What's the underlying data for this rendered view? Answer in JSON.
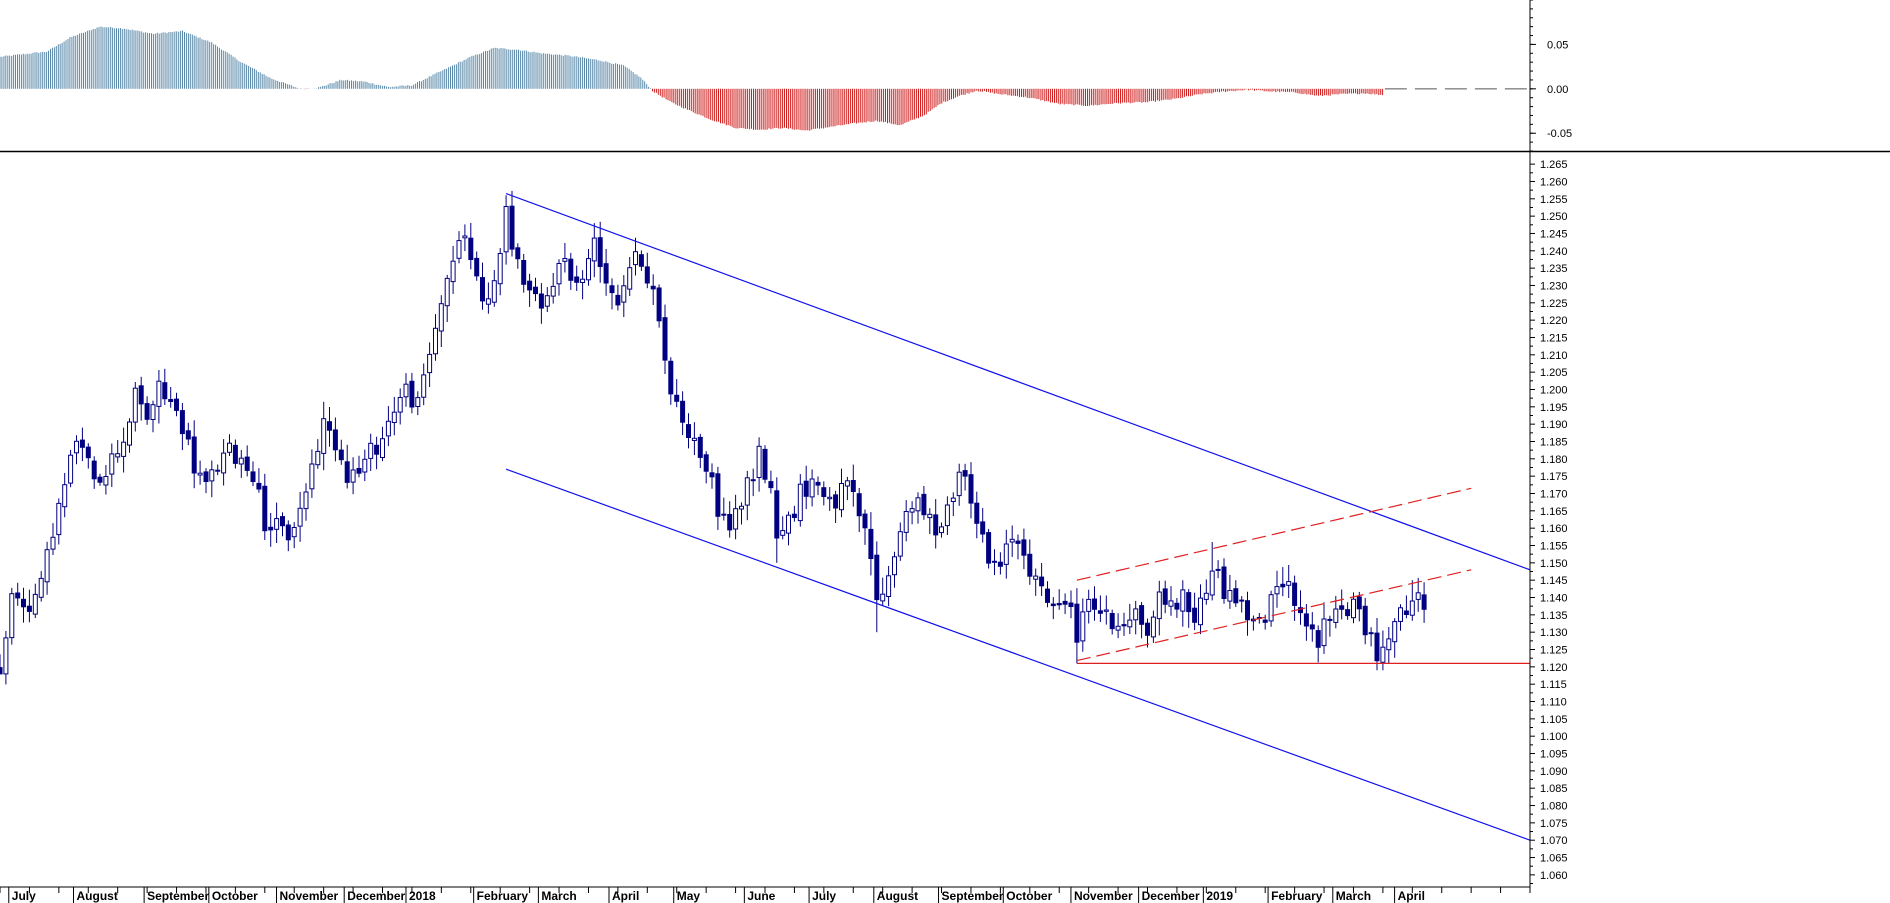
{
  "colors": {
    "background": "#ffffff",
    "price_bars": "#000080",
    "channel_lines": "#1010ee",
    "wedge_lines": "#e02020",
    "support_line": "#e02020",
    "osc_positive": "#5a88a8",
    "osc_negative": "#d02020",
    "axis": "#000000"
  },
  "chart_data": [
    {
      "type": "bar",
      "panel": "oscillator",
      "x_range": [
        0,
        260
      ],
      "ylim": [
        -0.07,
        0.1
      ],
      "y_ticks": [
        "0.05",
        "0.00",
        "-0.05"
      ],
      "y_tick_values": [
        0.05,
        0.0,
        -0.05
      ],
      "zero_line": "dashed",
      "anchors": [
        [
          0,
          0.036
        ],
        [
          8,
          0.042
        ],
        [
          12,
          0.058
        ],
        [
          17,
          0.07
        ],
        [
          21,
          0.068
        ],
        [
          26,
          0.062
        ],
        [
          31,
          0.065
        ],
        [
          36,
          0.052
        ],
        [
          41,
          0.03
        ],
        [
          46,
          0.012
        ],
        [
          51,
          0.0
        ],
        [
          54,
          0.001
        ],
        [
          58,
          0.01
        ],
        [
          62,
          0.008
        ],
        [
          66,
          0.002
        ],
        [
          70,
          0.004
        ],
        [
          75,
          0.02
        ],
        [
          80,
          0.036
        ],
        [
          84,
          0.046
        ],
        [
          88,
          0.044
        ],
        [
          92,
          0.04
        ],
        [
          97,
          0.037
        ],
        [
          102,
          0.032
        ],
        [
          106,
          0.026
        ],
        [
          109,
          0.012
        ],
        [
          111,
          -0.003
        ],
        [
          114,
          -0.015
        ],
        [
          117,
          -0.024
        ],
        [
          121,
          -0.035
        ],
        [
          125,
          -0.044
        ],
        [
          129,
          -0.046
        ],
        [
          133,
          -0.044
        ],
        [
          137,
          -0.047
        ],
        [
          141,
          -0.043
        ],
        [
          145,
          -0.039
        ],
        [
          149,
          -0.036
        ],
        [
          153,
          -0.041
        ],
        [
          157,
          -0.03
        ],
        [
          160,
          -0.016
        ],
        [
          163,
          -0.008
        ],
        [
          166,
          -0.002
        ],
        [
          170,
          -0.006
        ],
        [
          175,
          -0.01
        ],
        [
          180,
          -0.017
        ],
        [
          185,
          -0.019
        ],
        [
          190,
          -0.016
        ],
        [
          195,
          -0.015
        ],
        [
          200,
          -0.011
        ],
        [
          204,
          -0.006
        ],
        [
          208,
          -0.003
        ],
        [
          212,
          -0.001
        ],
        [
          216,
          -0.003
        ],
        [
          220,
          -0.004
        ],
        [
          224,
          -0.008
        ],
        [
          228,
          -0.006
        ],
        [
          232,
          -0.005
        ],
        [
          235,
          -0.007
        ]
      ]
    },
    {
      "type": "candlestick",
      "panel": "price",
      "x_range": [
        0,
        260
      ],
      "ylim": [
        1.0565,
        1.2685
      ],
      "y_ticks": [
        "1.265",
        "1.260",
        "1.255",
        "1.250",
        "1.245",
        "1.240",
        "1.235",
        "1.230",
        "1.225",
        "1.220",
        "1.215",
        "1.210",
        "1.205",
        "1.200",
        "1.195",
        "1.190",
        "1.185",
        "1.180",
        "1.175",
        "1.170",
        "1.165",
        "1.160",
        "1.155",
        "1.150",
        "1.145",
        "1.140",
        "1.135",
        "1.130",
        "1.125",
        "1.120",
        "1.115",
        "1.110",
        "1.105",
        "1.100",
        "1.095",
        "1.090",
        "1.085",
        "1.080",
        "1.075",
        "1.070",
        "1.065",
        "1.060"
      ],
      "y_tick_values": [
        1.265,
        1.26,
        1.255,
        1.25,
        1.245,
        1.24,
        1.235,
        1.23,
        1.225,
        1.22,
        1.215,
        1.21,
        1.205,
        1.2,
        1.195,
        1.19,
        1.185,
        1.18,
        1.175,
        1.17,
        1.165,
        1.16,
        1.155,
        1.15,
        1.145,
        1.14,
        1.135,
        1.13,
        1.125,
        1.12,
        1.115,
        1.11,
        1.105,
        1.1,
        1.095,
        1.09,
        1.085,
        1.08,
        1.075,
        1.07,
        1.065,
        1.06
      ],
      "months": [
        {
          "label": "July",
          "x": 2
        },
        {
          "label": "August",
          "x": 13
        },
        {
          "label": "September",
          "x": 25
        },
        {
          "label": "October",
          "x": 36
        },
        {
          "label": "November",
          "x": 47.5
        },
        {
          "label": "December",
          "x": 59
        },
        {
          "label": "2018",
          "x": 69.5
        },
        {
          "label": "February",
          "x": 81
        },
        {
          "label": "March",
          "x": 92
        },
        {
          "label": "April",
          "x": 104
        },
        {
          "label": "May",
          "x": 115
        },
        {
          "label": "June",
          "x": 127
        },
        {
          "label": "July",
          "x": 138
        },
        {
          "label": "August",
          "x": 149
        },
        {
          "label": "September",
          "x": 160
        },
        {
          "label": "October",
          "x": 171
        },
        {
          "label": "November",
          "x": 182.5
        },
        {
          "label": "December",
          "x": 194
        },
        {
          "label": "2019",
          "x": 205
        },
        {
          "label": "February",
          "x": 216
        },
        {
          "label": "March",
          "x": 227
        },
        {
          "label": "April",
          "x": 237.5
        }
      ],
      "close_anchors": [
        [
          0,
          1.12
        ],
        [
          2,
          1.14
        ],
        [
          5,
          1.138
        ],
        [
          7,
          1.143
        ],
        [
          9,
          1.16
        ],
        [
          11,
          1.172
        ],
        [
          13,
          1.186
        ],
        [
          15,
          1.178
        ],
        [
          17,
          1.175
        ],
        [
          19,
          1.18
        ],
        [
          21,
          1.186
        ],
        [
          23,
          1.198
        ],
        [
          25,
          1.192
        ],
        [
          27,
          1.2
        ],
        [
          29,
          1.196
        ],
        [
          31,
          1.19
        ],
        [
          33,
          1.178
        ],
        [
          35,
          1.172
        ],
        [
          37,
          1.178
        ],
        [
          39,
          1.182
        ],
        [
          41,
          1.18
        ],
        [
          43,
          1.176
        ],
        [
          45,
          1.162
        ],
        [
          47,
          1.16
        ],
        [
          49,
          1.158
        ],
        [
          51,
          1.165
        ],
        [
          53,
          1.178
        ],
        [
          55,
          1.19
        ],
        [
          57,
          1.185
        ],
        [
          59,
          1.176
        ],
        [
          61,
          1.176
        ],
        [
          63,
          1.182
        ],
        [
          65,
          1.186
        ],
        [
          67,
          1.195
        ],
        [
          69,
          1.2
        ],
        [
          71,
          1.195
        ],
        [
          73,
          1.21
        ],
        [
          75,
          1.226
        ],
        [
          77,
          1.238
        ],
        [
          79,
          1.244
        ],
        [
          81,
          1.232
        ],
        [
          83,
          1.224
        ],
        [
          85,
          1.24
        ],
        [
          86,
          1.25
        ],
        [
          88,
          1.236
        ],
        [
          90,
          1.228
        ],
        [
          92,
          1.222
        ],
        [
          94,
          1.232
        ],
        [
          96,
          1.238
        ],
        [
          98,
          1.23
        ],
        [
          100,
          1.236
        ],
        [
          101,
          1.244
        ],
        [
          103,
          1.232
        ],
        [
          105,
          1.226
        ],
        [
          107,
          1.236
        ],
        [
          109,
          1.238
        ],
        [
          111,
          1.228
        ],
        [
          112,
          1.218
        ],
        [
          114,
          1.2
        ],
        [
          116,
          1.192
        ],
        [
          118,
          1.185
        ],
        [
          120,
          1.178
        ],
        [
          122,
          1.166
        ],
        [
          124,
          1.16
        ],
        [
          126,
          1.168
        ],
        [
          128,
          1.176
        ],
        [
          129,
          1.182
        ],
        [
          131,
          1.17
        ],
        [
          132,
          1.16
        ],
        [
          134,
          1.162
        ],
        [
          136,
          1.17
        ],
        [
          138,
          1.174
        ],
        [
          140,
          1.17
        ],
        [
          142,
          1.168
        ],
        [
          144,
          1.172
        ],
        [
          146,
          1.164
        ],
        [
          148,
          1.152
        ],
        [
          149,
          1.138
        ],
        [
          151,
          1.146
        ],
        [
          153,
          1.16
        ],
        [
          155,
          1.168
        ],
        [
          157,
          1.164
        ],
        [
          159,
          1.16
        ],
        [
          161,
          1.166
        ],
        [
          163,
          1.175
        ],
        [
          164,
          1.178
        ],
        [
          166,
          1.162
        ],
        [
          168,
          1.15
        ],
        [
          170,
          1.148
        ],
        [
          172,
          1.158
        ],
        [
          174,
          1.154
        ],
        [
          176,
          1.144
        ],
        [
          178,
          1.14
        ],
        [
          180,
          1.136
        ],
        [
          182,
          1.14
        ],
        [
          183,
          1.128
        ],
        [
          185,
          1.14
        ],
        [
          187,
          1.136
        ],
        [
          189,
          1.132
        ],
        [
          191,
          1.134
        ],
        [
          193,
          1.136
        ],
        [
          195,
          1.13
        ],
        [
          197,
          1.14
        ],
        [
          199,
          1.138
        ],
        [
          201,
          1.14
        ],
        [
          203,
          1.134
        ],
        [
          205,
          1.142
        ],
        [
          206,
          1.15
        ],
        [
          208,
          1.142
        ],
        [
          210,
          1.14
        ],
        [
          212,
          1.135
        ],
        [
          214,
          1.132
        ],
        [
          216,
          1.138
        ],
        [
          218,
          1.146
        ],
        [
          220,
          1.14
        ],
        [
          222,
          1.132
        ],
        [
          224,
          1.128
        ],
        [
          226,
          1.134
        ],
        [
          228,
          1.136
        ],
        [
          230,
          1.138
        ],
        [
          232,
          1.132
        ],
        [
          234,
          1.122
        ],
        [
          235,
          1.128
        ],
        [
          237,
          1.134
        ],
        [
          239,
          1.136
        ],
        [
          241,
          1.142
        ],
        [
          242,
          1.134
        ]
      ],
      "pivots": [
        [
          0,
          1.118,
          "low"
        ],
        [
          86,
          1.256,
          "high"
        ],
        [
          101,
          1.248,
          "high"
        ],
        [
          132,
          1.15,
          "low"
        ],
        [
          149,
          1.13,
          "low"
        ],
        [
          183,
          1.121,
          "low"
        ],
        [
          206,
          1.156,
          "high"
        ],
        [
          234,
          1.119,
          "low"
        ],
        [
          240,
          1.145,
          "high"
        ]
      ],
      "trendlines": [
        {
          "name": "upper-channel",
          "style": "solid",
          "color": "channel_lines",
          "from": [
            86,
            1.2565
          ],
          "to": [
            260,
            1.148
          ]
        },
        {
          "name": "lower-channel",
          "style": "solid",
          "color": "channel_lines",
          "from": [
            86,
            1.177
          ],
          "to": [
            260,
            1.07
          ]
        },
        {
          "name": "wedge-upper",
          "style": "dashed",
          "color": "wedge_lines",
          "from": [
            183,
            1.145
          ],
          "to": [
            250,
            1.1715
          ]
        },
        {
          "name": "wedge-lower",
          "style": "dashed",
          "color": "wedge_lines",
          "from": [
            183,
            1.1218
          ],
          "to": [
            250,
            1.148
          ]
        },
        {
          "name": "support",
          "style": "solid",
          "color": "support_line",
          "from": [
            183,
            1.121
          ],
          "to": [
            260,
            1.121
          ]
        }
      ]
    }
  ]
}
